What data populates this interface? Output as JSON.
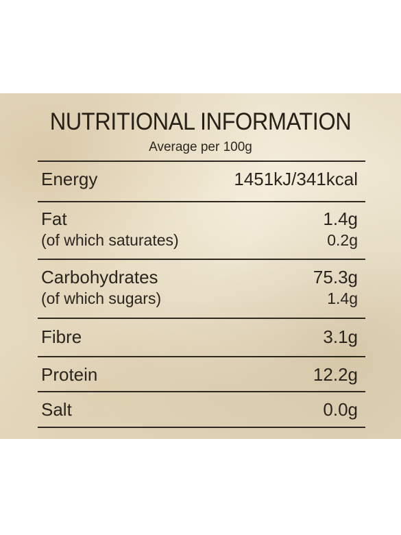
{
  "panel": {
    "title": "NUTRITIONAL INFORMATION",
    "subtitle": "Average per 100g"
  },
  "rows": [
    {
      "name": "Energy",
      "value": "1451kJ/341kcal"
    },
    {
      "name": "Fat",
      "value": "1.4g",
      "sub_name": "(of which saturates)",
      "sub_value": "0.2g"
    },
    {
      "name": "Carbohydrates",
      "value": "75.3g",
      "sub_name": "(of which sugars)",
      "sub_value": "1.4g"
    },
    {
      "name": "Fibre",
      "value": "3.1g"
    },
    {
      "name": "Protein",
      "value": "12.2g"
    },
    {
      "name": "Salt",
      "value": "0.0g"
    }
  ]
}
